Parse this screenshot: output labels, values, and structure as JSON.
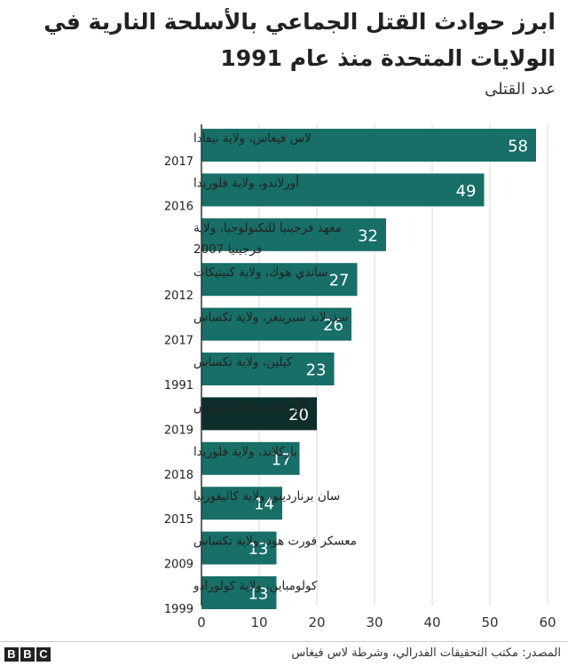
{
  "title": "ابرز حوادث القتل الجماعي بالأسلحة النارية في الولايات المتحدة منذ عام 1991",
  "subtitle": "عدد القتلى",
  "source": "المصدر: مكتب التحقيقات الفدرالي، وشرطة لاس فيغاس",
  "logo": [
    "B",
    "B",
    "C"
  ],
  "colors": {
    "bar": "#176f67",
    "highlight": "#0d2e2b",
    "grid": "#d9d9d9",
    "axis": "#333333"
  },
  "chart_data": {
    "type": "bar",
    "orientation": "horizontal",
    "categories": [
      {
        "name": "لاس فيغاس، ولاية نيفادا",
        "year": "2017",
        "value": 58
      },
      {
        "name": "أورلاندو، ولاية فلوريدا",
        "year": "2016",
        "value": 49
      },
      {
        "name": "معهد فرجينيا للتكنولوجيا، ولاية فرجينيا 2007",
        "year": "",
        "value": 32
      },
      {
        "name": "ساندي هوك، ولاية كنيتيكات",
        "year": "2012",
        "value": 27
      },
      {
        "name": "سذرلاند سبرينغز، ولاية تكساس",
        "year": "2017",
        "value": 26
      },
      {
        "name": "كيلين، ولاية تكساس",
        "year": "1991",
        "value": 23
      },
      {
        "name": "أل باسو، ولاية تكساس",
        "year": "2019",
        "value": 20,
        "highlight": true
      },
      {
        "name": "باركلاند، ولاية فلوريدا",
        "year": "2018",
        "value": 17
      },
      {
        "name": "سان برناردينو، ولاية كاليفورنيا",
        "year": "2015",
        "value": 14
      },
      {
        "name": "معسكر فورت هود، ولاية تكساس",
        "year": "2009",
        "value": 13
      },
      {
        "name": "كولومباين، ولاية كولورادو",
        "year": "1999",
        "value": 13
      }
    ],
    "xlim": [
      0,
      60
    ],
    "xticks": [
      0,
      10,
      20,
      30,
      40,
      50,
      60
    ],
    "grid": true
  }
}
